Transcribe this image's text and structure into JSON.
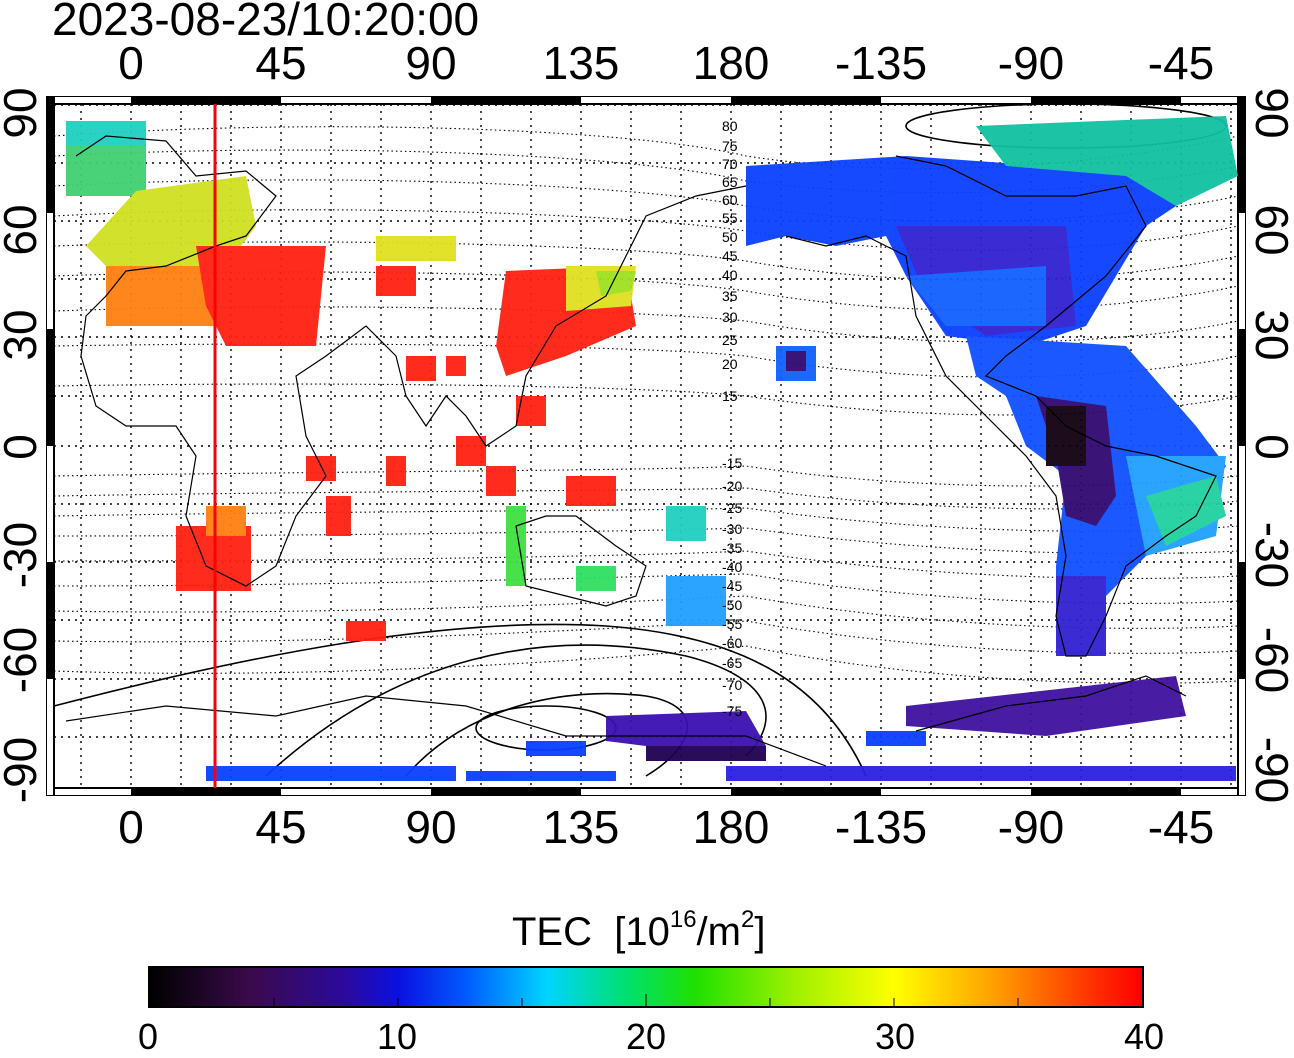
{
  "title": "2023-08-23/10:20:00",
  "axes": {
    "top_ticks": [
      "0",
      "45",
      "90",
      "135",
      "180",
      "-135",
      "-90",
      "-45"
    ],
    "bottom_ticks": [
      "0",
      "45",
      "90",
      "135",
      "180",
      "-135",
      "-90",
      "-45"
    ],
    "left_ticks": [
      "90",
      "60",
      "30",
      "0",
      "-30",
      "-60",
      "-90"
    ],
    "right_ticks": [
      "90",
      "60",
      "30",
      "0",
      "-30",
      "-60",
      "-90"
    ]
  },
  "contour_labels": [
    "80",
    "75",
    "70",
    "65",
    "60",
    "55",
    "50",
    "45",
    "40",
    "35",
    "30",
    "25",
    "20",
    "15",
    "-15",
    "-20",
    "-25",
    "-30",
    "-35",
    "-40",
    "-45",
    "-50",
    "-55",
    "-60",
    "-65",
    "-70",
    "-75"
  ],
  "colorbar": {
    "label": "TEC",
    "unit_prefix": "[10",
    "unit_exp": "16",
    "unit_mid": "/m",
    "unit_exp2": "2",
    "unit_suffix": "]",
    "ticks": [
      "0",
      "10",
      "20",
      "30",
      "40"
    ],
    "range": [
      0,
      40
    ]
  },
  "colors": {
    "meridian_marker": "#ff0000",
    "frame": "#000000"
  }
}
